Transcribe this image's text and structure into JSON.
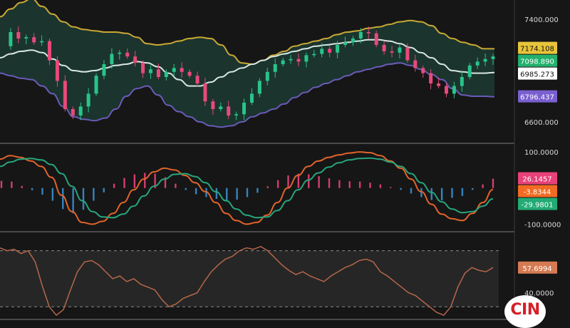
{
  "chart_data": [
    {
      "type": "candlestick",
      "panel": "price",
      "overlay": "bollinger-bands",
      "ylim": [
        6450,
        7550
      ],
      "y_ticks": [
        {
          "value": 7400,
          "label": "7400.000"
        },
        {
          "value": 6600,
          "label": "6600.000"
        }
      ],
      "price_labels": [
        {
          "value": 7174.108,
          "label": "7174.108",
          "color": "#e8c43a",
          "role": "upper-band"
        },
        {
          "value": 7098.89,
          "label": "7098.890",
          "color": "#23b06d",
          "role": "last-price"
        },
        {
          "value": 6985.273,
          "label": "6985.273",
          "color": "#ffffff",
          "role": "middle-band"
        },
        {
          "value": 6796.437,
          "label": "6796.437",
          "color": "#7a5fd0",
          "role": "lower-band"
        }
      ],
      "close_path": [
        7190,
        7300,
        7250,
        7260,
        7220,
        7230,
        7080,
        6920,
        6700,
        6650,
        6720,
        6820,
        6960,
        7050,
        7130,
        7140,
        7110,
        7060,
        6980,
        7010,
        6950,
        6990,
        7020,
        6990,
        6960,
        6900,
        6760,
        6700,
        6720,
        6650,
        6660,
        6750,
        6820,
        6920,
        6990,
        7050,
        7080,
        7090,
        7070,
        7120,
        7130,
        7170,
        7140,
        7200,
        7220,
        7250,
        7300,
        7290,
        7200,
        7150,
        7140,
        7180,
        7080,
        7020,
        6980,
        6900,
        6880,
        6820,
        6880,
        6950,
        7040,
        7070,
        7090,
        7110
      ],
      "band_upper": [
        7420,
        7480,
        7530,
        7560,
        7500,
        7440,
        7380,
        7340,
        7320,
        7310,
        7300,
        7300,
        7290,
        7260,
        7210,
        7200,
        7210,
        7230,
        7250,
        7260,
        7250,
        7200,
        7120,
        7060,
        7050,
        7080,
        7120,
        7150,
        7190,
        7210,
        7230,
        7250,
        7280,
        7300,
        7310,
        7330,
        7340,
        7360,
        7380,
        7390,
        7380,
        7350,
        7290,
        7250,
        7220,
        7200,
        7170,
        7170
      ],
      "band_middle": [
        7100,
        7130,
        7150,
        7160,
        7140,
        7090,
        7040,
        7000,
        6990,
        7000,
        7020,
        7040,
        7050,
        7070,
        7060,
        7030,
        6980,
        6930,
        6880,
        6880,
        6910,
        6950,
        6990,
        7020,
        7050,
        7080,
        7110,
        7130,
        7150,
        7170,
        7190,
        7200,
        7210,
        7220,
        7230,
        7240,
        7240,
        7230,
        7210,
        7180,
        7140,
        7100,
        7050,
        7000,
        6990,
        6980,
        6980,
        6985
      ],
      "band_lower": [
        6980,
        6960,
        6940,
        6930,
        6880,
        6820,
        6720,
        6640,
        6620,
        6610,
        6630,
        6700,
        6800,
        6860,
        6880,
        6810,
        6730,
        6680,
        6640,
        6600,
        6570,
        6560,
        6570,
        6600,
        6640,
        6670,
        6700,
        6740,
        6790,
        6830,
        6870,
        6900,
        6930,
        6960,
        6990,
        7010,
        7030,
        7050,
        7060,
        7040,
        7010,
        6970,
        6930,
        6860,
        6810,
        6800,
        6800,
        6796
      ]
    },
    {
      "type": "line",
      "panel": "macd",
      "overlay": "histogram",
      "ylim": [
        -115,
        118
      ],
      "y_ticks": [
        {
          "value": 100,
          "label": "100.0000"
        },
        {
          "value": -100,
          "label": "-100.0000"
        }
      ],
      "price_labels": [
        {
          "value": 26.1457,
          "label": "26.1457",
          "color": "#e8417a",
          "role": "histogram"
        },
        {
          "value": -3.8344,
          "label": "-3.8344",
          "color": "#f26b22",
          "role": "macd-line"
        },
        {
          "value": -29.9801,
          "label": "-29.9801",
          "color": "#22ab74",
          "role": "signal-line"
        }
      ],
      "series": [
        {
          "values": [
            80,
            90,
            85,
            75,
            60,
            30,
            -20,
            -65,
            -95,
            -100,
            -92,
            -70,
            -40,
            -5,
            25,
            45,
            55,
            50,
            35,
            15,
            -10,
            -40,
            -70,
            -90,
            -100,
            -95,
            -75,
            -40,
            0,
            35,
            60,
            75,
            85,
            92,
            97,
            100,
            98,
            90,
            75,
            55,
            25,
            -10,
            -45,
            -72,
            -85,
            -90,
            -70,
            -40,
            -3.8344
          ],
          "color": "#e0642a"
        },
        {
          "values": [
            60,
            72,
            80,
            82,
            78,
            65,
            40,
            5,
            -35,
            -65,
            -80,
            -82,
            -72,
            -50,
            -22,
            5,
            25,
            38,
            40,
            32,
            15,
            -10,
            -35,
            -58,
            -75,
            -82,
            -80,
            -62,
            -35,
            -5,
            22,
            42,
            58,
            70,
            78,
            82,
            83,
            80,
            72,
            60,
            40,
            15,
            -12,
            -38,
            -58,
            -68,
            -65,
            -50,
            -29.9801
          ],
          "color": "#27a57c"
        }
      ],
      "histogram": [
        20,
        18,
        6,
        -6,
        -18,
        -35,
        -58,
        -70,
        -60,
        -35,
        -12,
        12,
        28,
        38,
        42,
        40,
        30,
        12,
        -5,
        -17,
        -25,
        -30,
        -35,
        -32,
        -25,
        -13,
        5,
        22,
        35,
        40,
        38,
        33,
        27,
        22,
        19,
        18,
        15,
        10,
        3,
        -5,
        -15,
        -25,
        -33,
        -34,
        -27,
        -22,
        -5,
        10,
        26.1457
      ]
    },
    {
      "type": "line",
      "panel": "rsi",
      "ylim": [
        22,
        82
      ],
      "y_ticks": [
        {
          "value": 40,
          "label": "40.0000"
        }
      ],
      "bands": [
        70,
        30
      ],
      "price_labels": [
        {
          "value": 57.6994,
          "label": "57.6994",
          "color": "#d57a52",
          "role": "rsi"
        }
      ],
      "series": [
        {
          "values": [
            72,
            70,
            71,
            68,
            70,
            62,
            45,
            30,
            24,
            28,
            42,
            55,
            62,
            63,
            60,
            55,
            50,
            52,
            48,
            50,
            46,
            44,
            42,
            35,
            30,
            32,
            36,
            38,
            40,
            48,
            55,
            60,
            64,
            66,
            70,
            72,
            71,
            73,
            70,
            65,
            60,
            56,
            53,
            55,
            52,
            50,
            48,
            52,
            55,
            58,
            60,
            63,
            64,
            62,
            55,
            52,
            48,
            44,
            40,
            38,
            34,
            30,
            26,
            24,
            30,
            44,
            54,
            58,
            56,
            55,
            58
          ],
          "color": "#b5674a"
        }
      ]
    }
  ],
  "branding": {
    "logo_text": "CIN"
  }
}
